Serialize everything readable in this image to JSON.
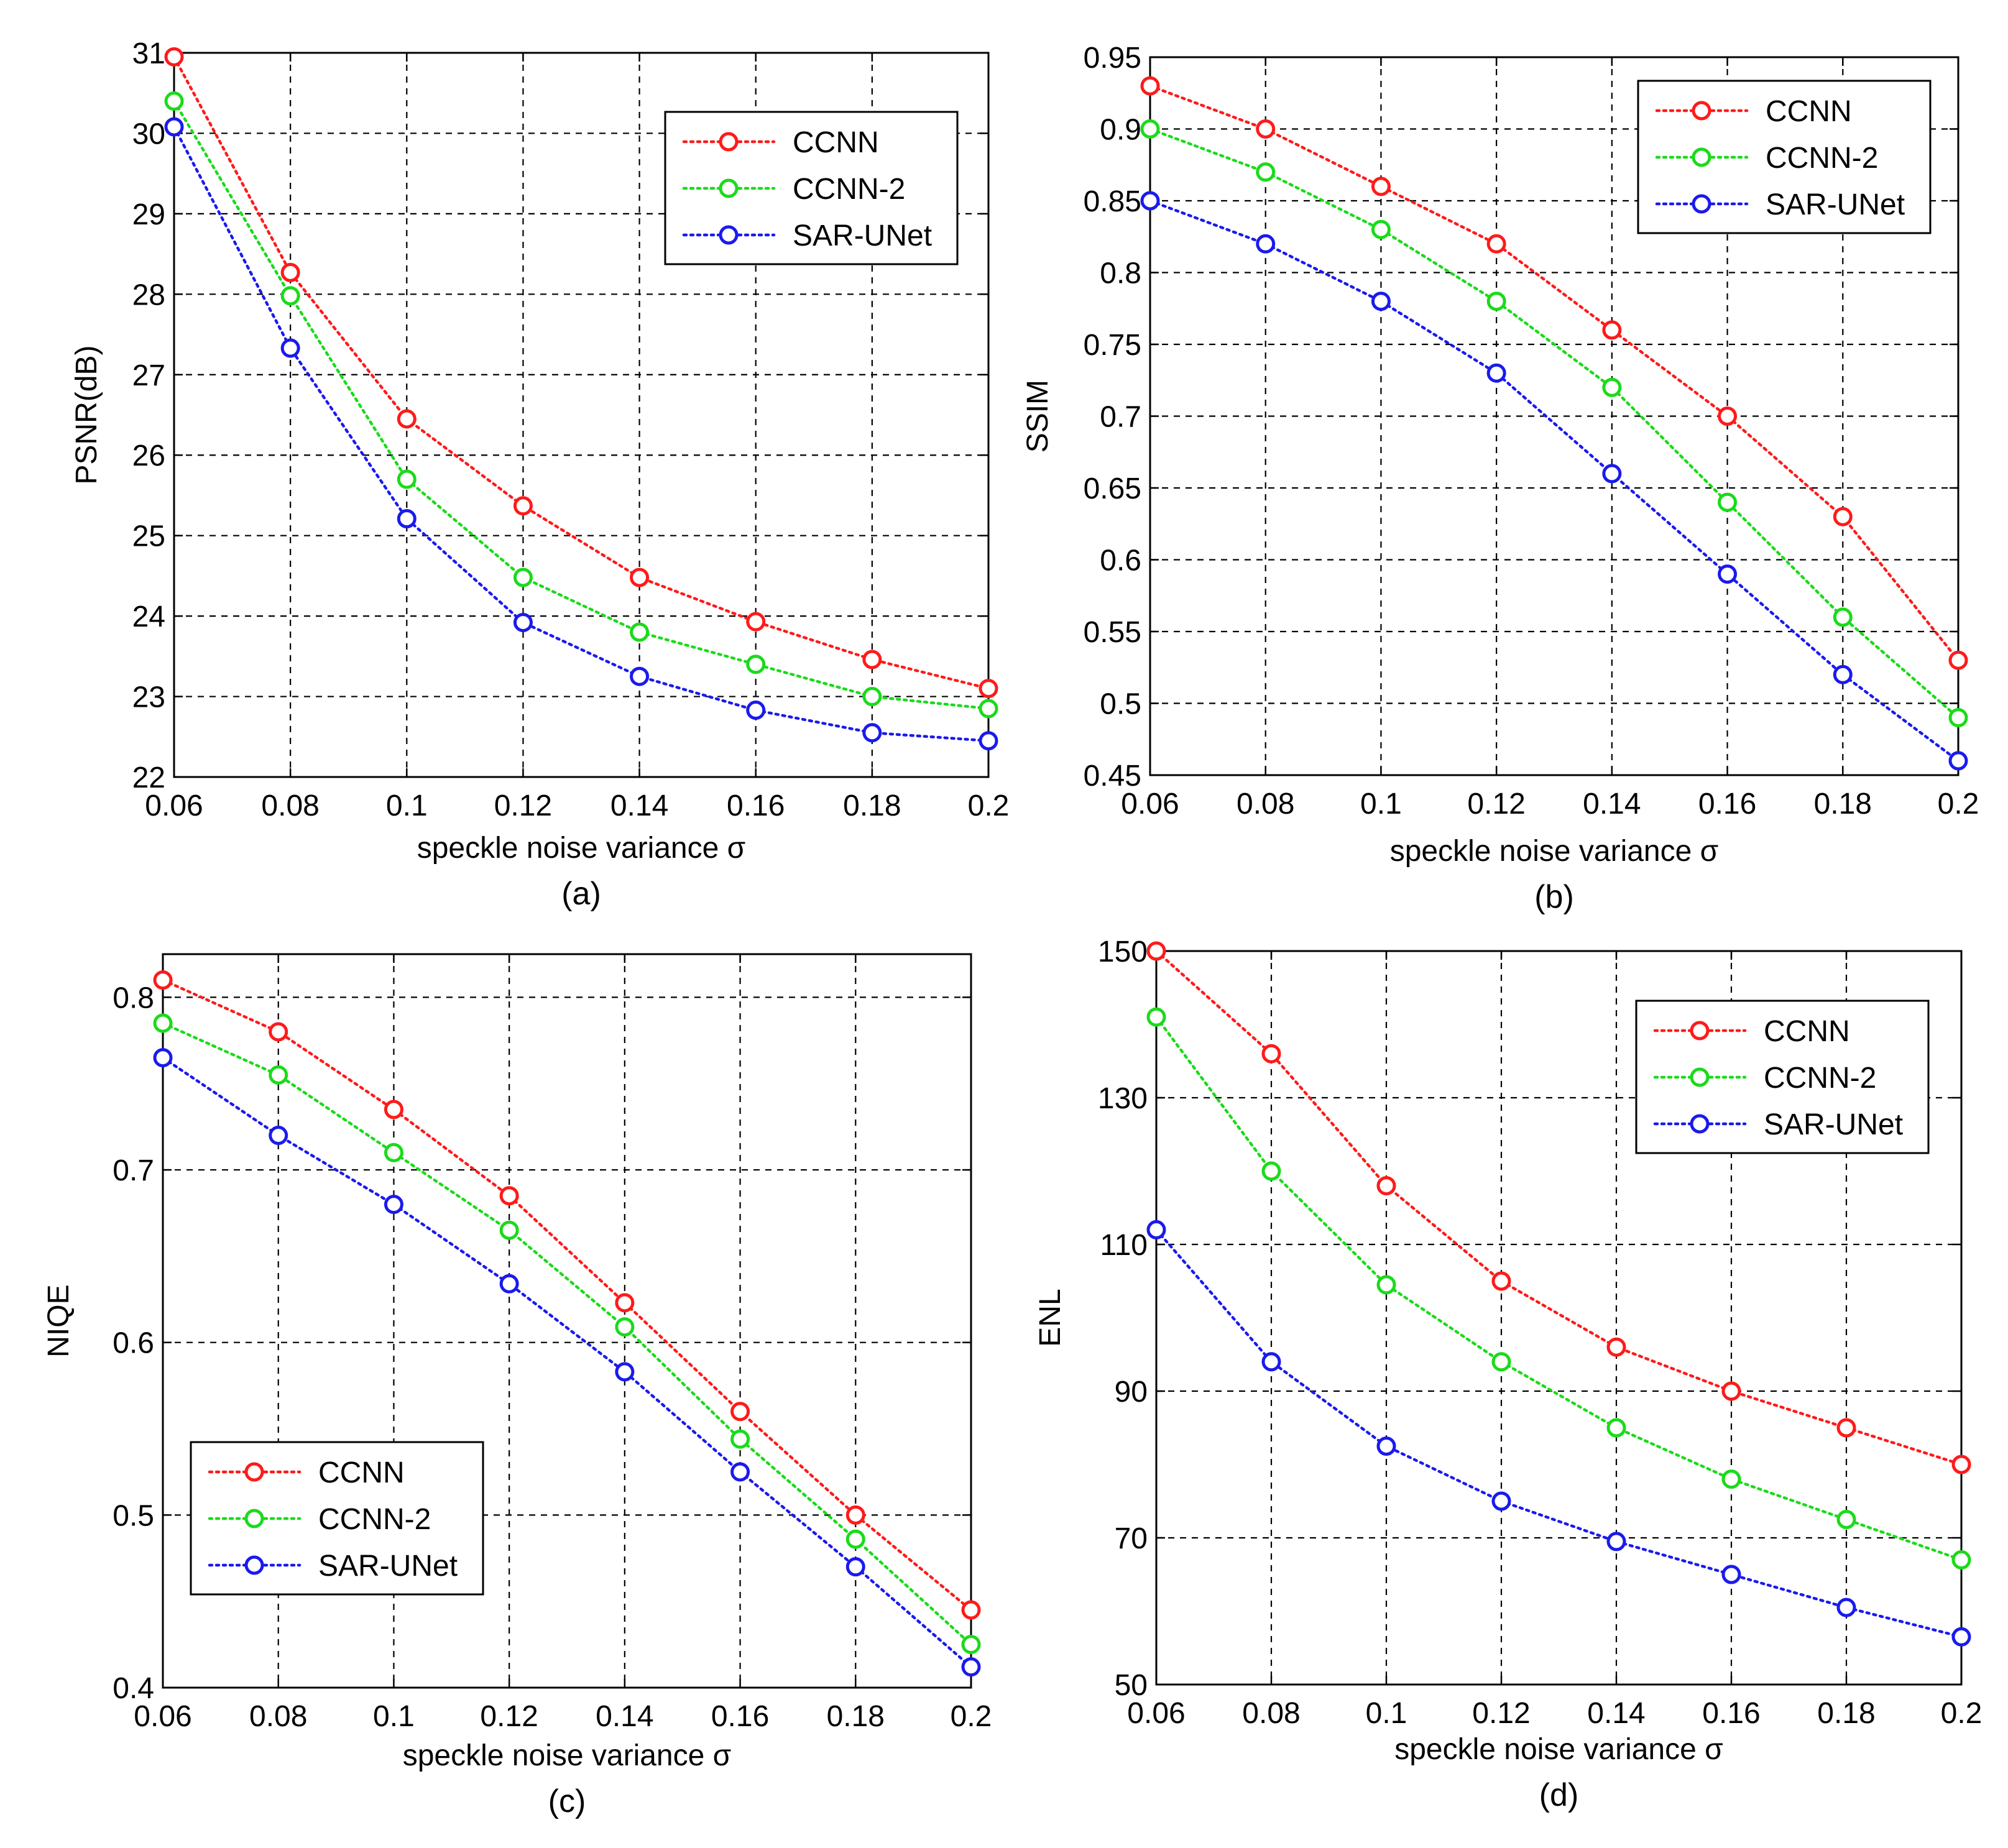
{
  "colors": {
    "CCNN": "#ff1a1a",
    "CCNN-2": "#1adb1a",
    "SAR-UNet": "#1a1aee"
  },
  "chart_data": [
    {
      "type": "line",
      "panel_label": "(a)",
      "xlabel": "speckle noise variance σ",
      "ylabel": "PSNR(dB)",
      "xlim": [
        0.06,
        0.2
      ],
      "ylim": [
        22,
        31
      ],
      "x_ticks": [
        0.06,
        0.08,
        0.1,
        0.12,
        0.14,
        0.16,
        0.18,
        0.2
      ],
      "x_tick_labels": [
        "0.06",
        "0.08",
        "0.1",
        "0.12",
        "0.14",
        "0.16",
        "0.18",
        "0.2"
      ],
      "y_ticks": [
        22,
        23,
        24,
        25,
        26,
        27,
        28,
        29,
        30,
        31
      ],
      "y_tick_labels": [
        "22",
        "23",
        "24",
        "25",
        "26",
        "27",
        "28",
        "29",
        "30",
        "31"
      ],
      "legend_position": "top-right",
      "x": [
        0.06,
        0.08,
        0.1,
        0.12,
        0.14,
        0.16,
        0.18,
        0.2
      ],
      "series": [
        {
          "name": "CCNN",
          "values": [
            30.95,
            28.27,
            26.45,
            25.37,
            24.48,
            23.93,
            23.46,
            23.1
          ]
        },
        {
          "name": "CCNN-2",
          "values": [
            30.4,
            27.98,
            25.7,
            24.48,
            23.8,
            23.4,
            23.0,
            22.85
          ]
        },
        {
          "name": "SAR-UNet",
          "values": [
            30.08,
            27.33,
            25.21,
            23.92,
            23.25,
            22.83,
            22.55,
            22.45
          ]
        }
      ]
    },
    {
      "type": "line",
      "panel_label": "(b)",
      "xlabel": "speckle noise variance σ",
      "ylabel": "SSIM",
      "xlim": [
        0.06,
        0.2
      ],
      "ylim": [
        0.45,
        0.95
      ],
      "x_ticks": [
        0.06,
        0.08,
        0.1,
        0.12,
        0.14,
        0.16,
        0.18,
        0.2
      ],
      "x_tick_labels": [
        "0.06",
        "0.08",
        "0.1",
        "0.12",
        "0.14",
        "0.16",
        "0.18",
        "0.2"
      ],
      "y_ticks": [
        0.45,
        0.5,
        0.55,
        0.6,
        0.65,
        0.7,
        0.75,
        0.8,
        0.85,
        0.9,
        0.95
      ],
      "y_tick_labels": [
        "0.45",
        "0.5",
        "0.55",
        "0.6",
        "0.65",
        "0.7",
        "0.75",
        "0.8",
        "0.85",
        "0.9",
        "0.95"
      ],
      "legend_position": "top-right",
      "x": [
        0.06,
        0.08,
        0.1,
        0.12,
        0.14,
        0.16,
        0.18,
        0.2
      ],
      "series": [
        {
          "name": "CCNN",
          "values": [
            0.93,
            0.9,
            0.86,
            0.82,
            0.76,
            0.7,
            0.63,
            0.53
          ]
        },
        {
          "name": "CCNN-2",
          "values": [
            0.9,
            0.87,
            0.83,
            0.78,
            0.72,
            0.64,
            0.56,
            0.49
          ]
        },
        {
          "name": "SAR-UNet",
          "values": [
            0.85,
            0.82,
            0.78,
            0.73,
            0.66,
            0.59,
            0.52,
            0.46
          ]
        }
      ]
    },
    {
      "type": "line",
      "panel_label": "(c)",
      "xlabel": "speckle noise variance σ",
      "ylabel": "NIQE",
      "xlim": [
        0.06,
        0.2
      ],
      "ylim": [
        0.4,
        0.825
      ],
      "x_ticks": [
        0.06,
        0.08,
        0.1,
        0.12,
        0.14,
        0.16,
        0.18,
        0.2
      ],
      "x_tick_labels": [
        "0.06",
        "0.08",
        "0.1",
        "0.12",
        "0.14",
        "0.16",
        "0.18",
        "0.2"
      ],
      "y_ticks": [
        0.4,
        0.5,
        0.6,
        0.7,
        0.8
      ],
      "y_tick_labels": [
        "0.4",
        "0.5",
        "0.6",
        "0.7",
        "0.8"
      ],
      "y_grid": [
        0.4,
        0.5,
        0.6,
        0.7,
        0.8,
        0.825
      ],
      "legend_position": "bottom-left",
      "x": [
        0.06,
        0.08,
        0.1,
        0.12,
        0.14,
        0.16,
        0.18,
        0.2
      ],
      "series": [
        {
          "name": "CCNN",
          "values": [
            0.81,
            0.78,
            0.735,
            0.685,
            0.623,
            0.56,
            0.5,
            0.445
          ]
        },
        {
          "name": "CCNN-2",
          "values": [
            0.785,
            0.755,
            0.71,
            0.665,
            0.609,
            0.544,
            0.486,
            0.425
          ]
        },
        {
          "name": "SAR-UNet",
          "values": [
            0.765,
            0.72,
            0.68,
            0.634,
            0.583,
            0.525,
            0.47,
            0.412
          ]
        }
      ]
    },
    {
      "type": "line",
      "panel_label": "(d)",
      "xlabel": "speckle noise variance σ",
      "ylabel": "ENL",
      "xlim": [
        0.06,
        0.2
      ],
      "ylim": [
        50,
        150
      ],
      "x_ticks": [
        0.06,
        0.08,
        0.1,
        0.12,
        0.14,
        0.16,
        0.18,
        0.2
      ],
      "x_tick_labels": [
        "0.06",
        "0.08",
        "0.1",
        "0.12",
        "0.14",
        "0.16",
        "0.18",
        "0.2"
      ],
      "y_ticks": [
        50,
        70,
        90,
        110,
        130,
        150
      ],
      "y_tick_labels": [
        "50",
        "70",
        "90",
        "110",
        "130",
        "150"
      ],
      "y_grid": [
        50,
        70,
        90,
        110,
        130,
        150
      ],
      "legend_position": "top-right",
      "x": [
        0.06,
        0.08,
        0.1,
        0.12,
        0.14,
        0.16,
        0.18,
        0.2
      ],
      "series": [
        {
          "name": "CCNN",
          "values": [
            150,
            136,
            118,
            105,
            96,
            90,
            85,
            80
          ]
        },
        {
          "name": "CCNN-2",
          "values": [
            141,
            120,
            104.5,
            94,
            85,
            78,
            72.5,
            67
          ]
        },
        {
          "name": "SAR-UNet",
          "values": [
            112,
            94,
            82.5,
            75,
            69.5,
            65,
            60.5,
            56.5
          ]
        }
      ]
    }
  ]
}
